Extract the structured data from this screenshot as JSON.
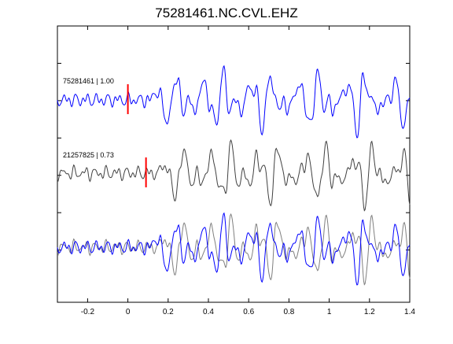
{
  "chart_data": {
    "type": "line",
    "title": "75281461.NC.CVL.EHZ",
    "xlabel": "",
    "ylabel": "",
    "xlim": [
      -0.35,
      1.4
    ],
    "xticks": [
      -0.2,
      0,
      0.2,
      0.4,
      0.6,
      0.8,
      1,
      1.2,
      1.4
    ],
    "xtick_labels": [
      "-0.2",
      "0",
      "0.2",
      "0.4",
      "0.6",
      "0.8",
      "1",
      "1.2",
      "1.4"
    ],
    "grid": false,
    "colors": {
      "target": "#0000ff",
      "match": "#404040",
      "overlay_match": "#7f7f7f",
      "pick": "#ff0000",
      "axes": "#000000"
    },
    "traces": [
      {
        "label": "75281461 | 1.00",
        "event_id": "75281461",
        "correlation": 1.0,
        "color": "#0000ff",
        "pick_time": 0.0
      },
      {
        "label": "21257825 | 0.73",
        "event_id": "21257825",
        "correlation": 0.73,
        "color": "#404040",
        "pick_time": 0.09
      }
    ],
    "overlay": {
      "description_visible": false,
      "series": [
        "75281461",
        "21257825"
      ]
    }
  }
}
